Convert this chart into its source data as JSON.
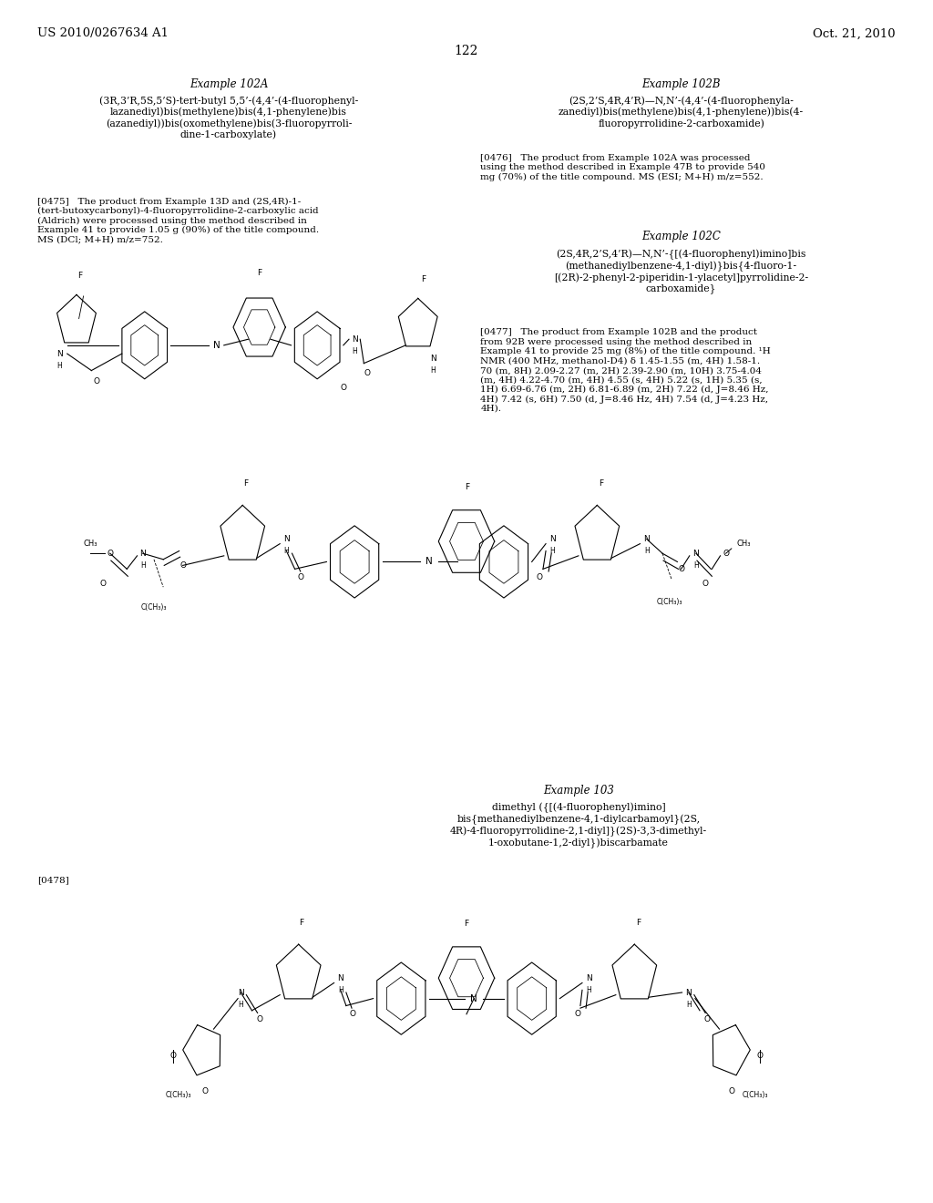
{
  "bg_color": "#ffffff",
  "page_width": 10.24,
  "page_height": 13.2,
  "header_left": "US 2010/0267634 A1",
  "header_right": "Oct. 21, 2010",
  "page_number": "122",
  "example_102A_title": "Example 102A",
  "example_102A_compound": "(3R,3’R,5S,5’S)-tert-butyl 5,5’-(4,4’-(4-fluorophenyl-\nlazanediyl)bis(methylene)bis(4,1-phenylene)bis\n(azanediyl))bis(oxomethylene)bis(3-fluoropyrroli-\ndine-1-carboxylate)",
  "example_102A_para": "[0475]   The product from Example 13D and (2S,4R)-1-\n(tert-butoxycarbonyl)-4-fluoropyrrolidine-2-carboxylic acid\n(Aldrich) were processed using the method described in\nExample 41 to provide 1.05 g (90%) of the title compound.\nMS (DCl; M+H) m/z=752.",
  "example_102B_title": "Example 102B",
  "example_102B_compound": "(2S,2’S,4R,4’R)—N,N’-(4,4’-(4-fluorophenyla-\nzanediyl)bis(methylene)bis(4,1-phenylene))bis(4-\nfluoropyrrolidine-2-carboxamide)",
  "example_102B_para": "[0476]   The product from Example 102A was processed\nusing the method described in Example 47B to provide 540\nmg (70%) of the title compound. MS (ESI; M+H) m/z=552.",
  "example_102C_title": "Example 102C",
  "example_102C_compound": "(2S,4R,2’S,4’R)—N,N’-{[(4-fluorophenyl)imino]bis\n(methanediylbenzene-4,1-diyl)}bis{4-fluoro-1-\n[(2R)-2-phenyl-2-piperidin-1-ylacetyl]pyrrolidine-2-\ncarboxamide}",
  "example_102C_para": "[0477]   The product from Example 102B and the product\nfrom 92B were processed using the method described in\nExample 41 to provide 25 mg (8%) of the title compound. ¹H\nNMR (400 MHz, methanol-D4) δ 1.45-1.55 (m, 4H) 1.58-1.\n70 (m, 8H) 2.09-2.27 (m, 2H) 2.39-2.90 (m, 10H) 3.75-4.04\n(m, 4H) 4.22-4.70 (m, 4H) 4.55 (s, 4H) 5.22 (s, 1H) 5.35 (s,\n1H) 6.69-6.76 (m, 2H) 6.81-6.89 (m, 2H) 7.22 (d, J=8.46 Hz,\n4H) 7.42 (s, 6H) 7.50 (d, J=8.46 Hz, 4H) 7.54 (d, J=4.23 Hz,\n4H).",
  "example_103_title": "Example 103",
  "example_103_compound": "dimethyl ({[(4-fluorophenyl)imino]\nbis{methanediylbenzene-4,1-diylcarbamoyl}(2S,\n4R)-4-fluoropyrrolidine-2,1-diyl]}(2S)-3,3-dimethyl-\n1-oxobutane-1,2-diyl})biscarbamate",
  "example_103_para": "[0478]"
}
